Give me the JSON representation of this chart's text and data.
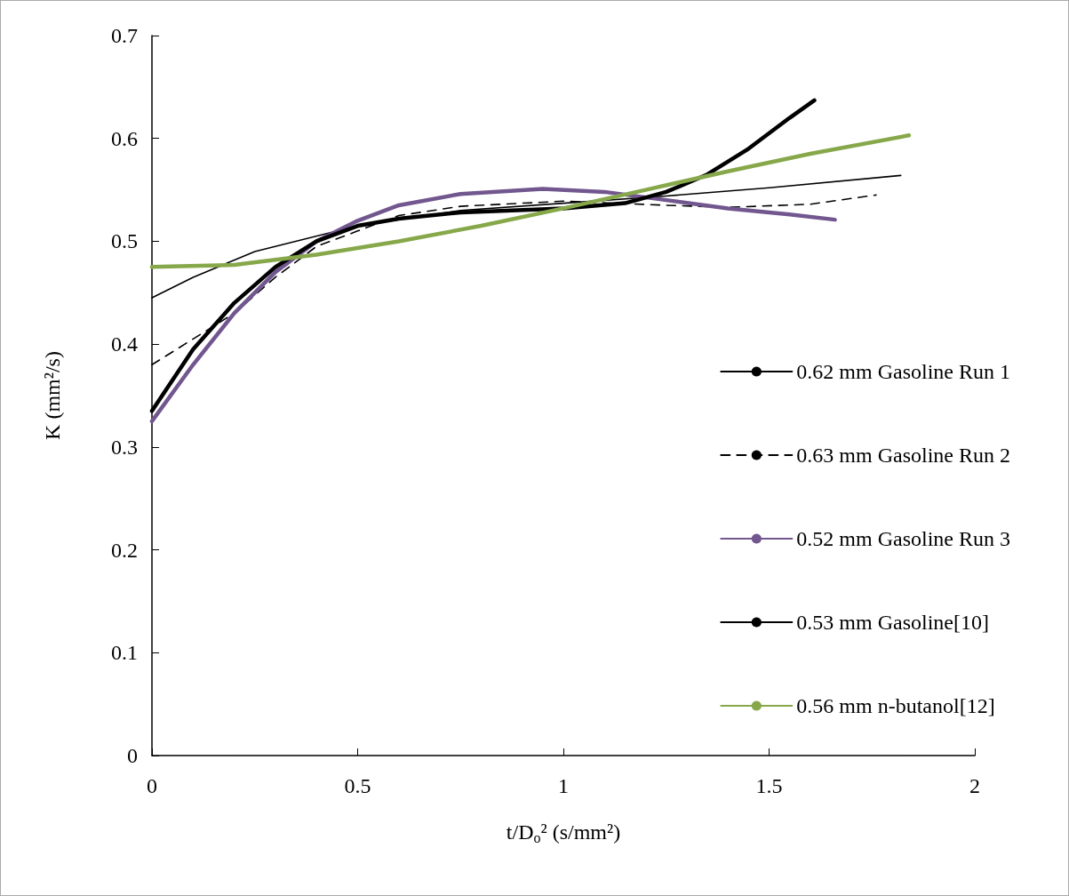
{
  "chart_data": {
    "type": "line",
    "xlabel": "t/D$_{o}$² (s/mm²)",
    "ylabel": "K (mm²/s)",
    "xlim": [
      0,
      2
    ],
    "xticks": [
      0,
      0.5,
      1,
      1.5,
      2
    ],
    "ylim": [
      0,
      0.7
    ],
    "yticks": [
      0,
      0.1,
      0.2,
      0.3,
      0.4,
      0.5,
      0.6,
      0.7
    ],
    "grid": false,
    "legend": "right",
    "marker": "none",
    "series": [
      {
        "name": "0.62 mm Gasoline Run 1",
        "color": "#000000",
        "line_style": "solid",
        "x": [
          0,
          0.1,
          0.25,
          0.5,
          0.75,
          1.0,
          1.25,
          1.5,
          1.82
        ],
        "values": [
          0.445,
          0.465,
          0.49,
          0.515,
          0.53,
          0.537,
          0.544,
          0.552,
          0.564
        ]
      },
      {
        "name": "0.63 mm Gasoline Run 2",
        "color": "#000000",
        "line_style": "dashed",
        "x": [
          0,
          0.1,
          0.2,
          0.3,
          0.4,
          0.5,
          0.6,
          0.75,
          1.0,
          1.25,
          1.4,
          1.6,
          1.76
        ],
        "values": [
          0.38,
          0.405,
          0.43,
          0.465,
          0.495,
          0.51,
          0.525,
          0.534,
          0.539,
          0.535,
          0.533,
          0.536,
          0.545
        ]
      },
      {
        "name": "0.52 mm Gasoline Run 3",
        "color": "#72578f",
        "line_style": "solid",
        "x": [
          0,
          0.1,
          0.2,
          0.3,
          0.4,
          0.5,
          0.6,
          0.75,
          0.95,
          1.1,
          1.25,
          1.4,
          1.55,
          1.66
        ],
        "values": [
          0.325,
          0.38,
          0.43,
          0.47,
          0.5,
          0.52,
          0.535,
          0.546,
          0.551,
          0.548,
          0.54,
          0.532,
          0.526,
          0.521
        ]
      },
      {
        "name": "0.53 mm Gasoline[10]",
        "color": "#000000",
        "line_style": "solid",
        "x": [
          0,
          0.1,
          0.2,
          0.3,
          0.4,
          0.5,
          0.6,
          0.75,
          1.0,
          1.15,
          1.25,
          1.35,
          1.45,
          1.55,
          1.61
        ],
        "values": [
          0.335,
          0.395,
          0.44,
          0.475,
          0.5,
          0.515,
          0.522,
          0.528,
          0.532,
          0.537,
          0.548,
          0.565,
          0.59,
          0.62,
          0.637
        ]
      },
      {
        "name": "0.56 mm n-butanol[12]",
        "color": "#86a84a",
        "line_style": "solid",
        "x": [
          0,
          0.2,
          0.4,
          0.6,
          0.8,
          1.0,
          1.2,
          1.4,
          1.6,
          1.84
        ],
        "values": [
          0.475,
          0.477,
          0.487,
          0.5,
          0.515,
          0.532,
          0.55,
          0.568,
          0.585,
          0.603
        ]
      }
    ]
  }
}
